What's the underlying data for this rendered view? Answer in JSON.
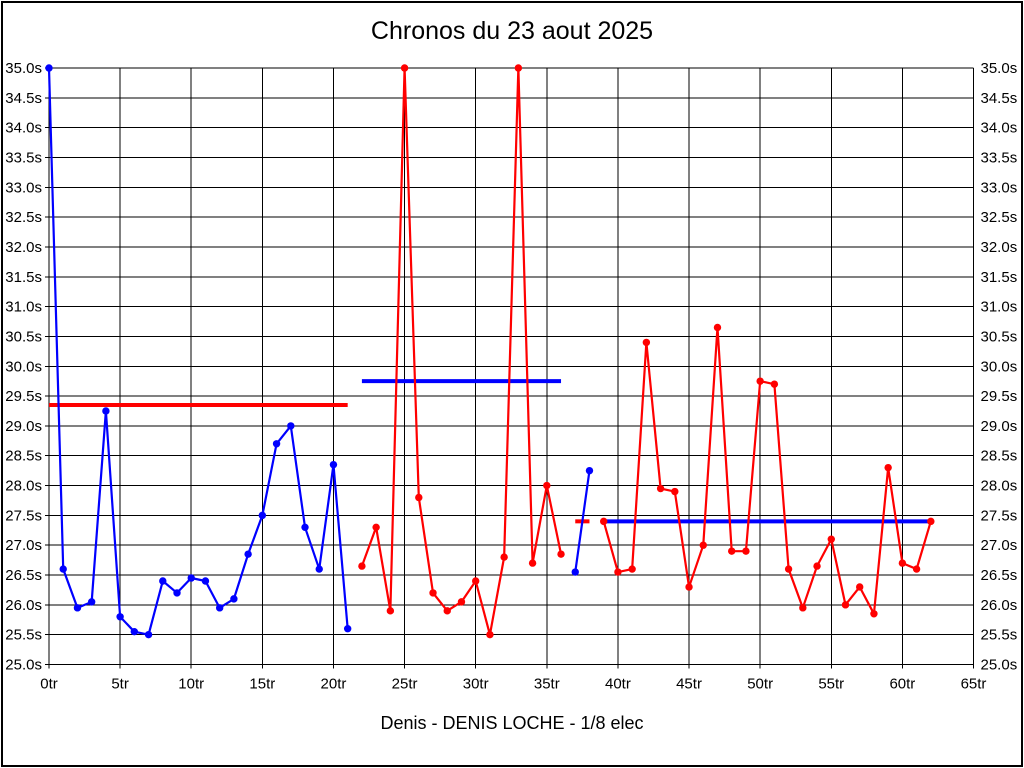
{
  "page": {
    "border_color": "#000000",
    "background": "#ffffff"
  },
  "colors": {
    "blue": "#0000ff",
    "red": "#ff0000",
    "grid": "#000000",
    "text": "#000000"
  },
  "chart_data": {
    "type": "line",
    "title": "Chronos du 23 aout 2025",
    "caption": "Denis - DENIS LOCHE - 1/8 elec",
    "x_unit": "tr",
    "y_unit": "s",
    "xlim": [
      0,
      65
    ],
    "ylim": [
      25.0,
      35.0
    ],
    "x_tick_step": 5,
    "y_tick_step": 0.5,
    "grid": true,
    "y_labels_both_sides": true,
    "x_tick_labels": [
      "0tr",
      "5tr",
      "10tr",
      "15tr",
      "20tr",
      "25tr",
      "30tr",
      "35tr",
      "40tr",
      "45tr",
      "50tr",
      "55tr",
      "60tr",
      "65tr"
    ],
    "y_tick_labels": [
      "35.0s",
      "34.5s",
      "34.0s",
      "33.5s",
      "33.0s",
      "32.5s",
      "32.0s",
      "31.5s",
      "31.0s",
      "30.5s",
      "30.0s",
      "29.5s",
      "29.0s",
      "28.5s",
      "28.0s",
      "27.5s",
      "27.0s",
      "26.5s",
      "26.0s",
      "25.5s",
      "25.0s"
    ],
    "series": [
      {
        "name": "stint-1-blue",
        "color_key": "blue",
        "x_start": 0,
        "values": [
          35.0,
          26.6,
          25.95,
          26.05,
          29.25,
          25.8,
          25.55,
          25.5,
          26.4,
          26.2,
          26.45,
          26.4,
          25.95,
          26.1,
          26.85,
          27.5,
          28.7,
          29.0,
          27.3,
          26.6,
          28.35,
          25.6
        ]
      },
      {
        "name": "stint-2-red",
        "color_key": "red",
        "x_start": 22,
        "values": [
          26.65,
          27.3,
          25.9,
          35.0,
          27.8,
          26.2,
          25.9,
          26.05,
          26.4,
          25.5,
          26.8,
          35.0,
          26.7,
          28.0,
          26.85
        ]
      },
      {
        "name": "stint-3-blue",
        "color_key": "blue",
        "x_start": 37,
        "values": [
          26.55,
          28.25
        ]
      },
      {
        "name": "stint-4-red",
        "color_key": "red",
        "x_start": 39,
        "values": [
          27.4,
          26.55,
          26.6,
          30.4,
          27.95,
          27.9,
          26.3,
          27.0,
          30.65,
          26.9,
          26.9,
          29.75,
          29.7,
          26.6,
          25.95,
          26.65,
          27.1,
          26.0,
          26.3,
          25.85,
          28.3,
          26.7,
          26.6,
          27.4
        ]
      }
    ],
    "reference_lines": [
      {
        "name": "average-line-stint-1",
        "color_key": "red",
        "x_start": 0,
        "x_end": 21,
        "value": 29.35
      },
      {
        "name": "average-line-stint-2",
        "color_key": "blue",
        "x_start": 22,
        "x_end": 36,
        "value": 29.75
      },
      {
        "name": "average-line-stint-3",
        "color_key": "red",
        "x_start": 37,
        "x_end": 38,
        "value": 27.4
      },
      {
        "name": "average-line-stint-4",
        "color_key": "blue",
        "x_start": 39,
        "x_end": 62,
        "value": 27.4
      }
    ]
  }
}
